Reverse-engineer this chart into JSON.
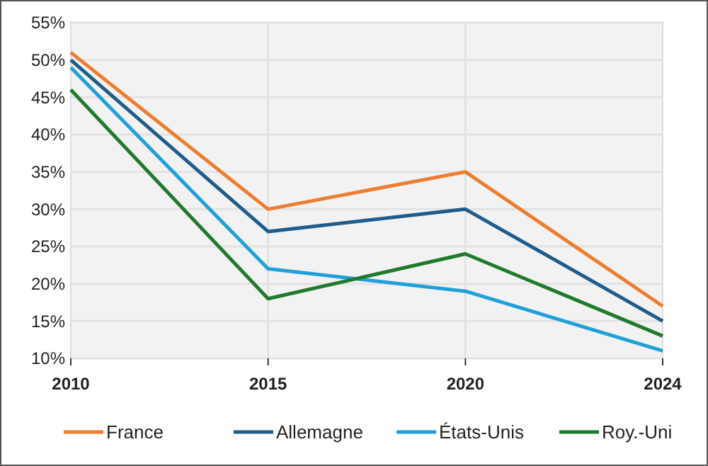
{
  "chart_data": {
    "type": "line",
    "categories": [
      "2010",
      "2015",
      "2020",
      "2024"
    ],
    "series": [
      {
        "name": "France",
        "color": "#ed7d31",
        "values": [
          51,
          30,
          35,
          17
        ]
      },
      {
        "name": "Allemagne",
        "color": "#1f5c8b",
        "values": [
          50,
          27,
          30,
          15
        ]
      },
      {
        "name": "États-Unis",
        "color": "#21a0d8",
        "values": [
          49,
          22,
          19,
          11
        ]
      },
      {
        "name": "Roy.-Uni",
        "color": "#217a2c",
        "values": [
          46,
          18,
          24,
          13
        ]
      }
    ],
    "ylim": [
      10,
      55
    ],
    "yticks": [
      {
        "value": 10,
        "label": "10%"
      },
      {
        "value": 15,
        "label": "15%"
      },
      {
        "value": 20,
        "label": "20%"
      },
      {
        "value": 25,
        "label": "25%"
      },
      {
        "value": 30,
        "label": "30%"
      },
      {
        "value": 35,
        "label": "35%"
      },
      {
        "value": 40,
        "label": "40%"
      },
      {
        "value": 45,
        "label": "45%"
      },
      {
        "value": 50,
        "label": "50%"
      },
      {
        "value": 55,
        "label": "55%"
      }
    ],
    "grid": true,
    "legend": "bottom",
    "marker": "none",
    "line_style": "solid"
  }
}
